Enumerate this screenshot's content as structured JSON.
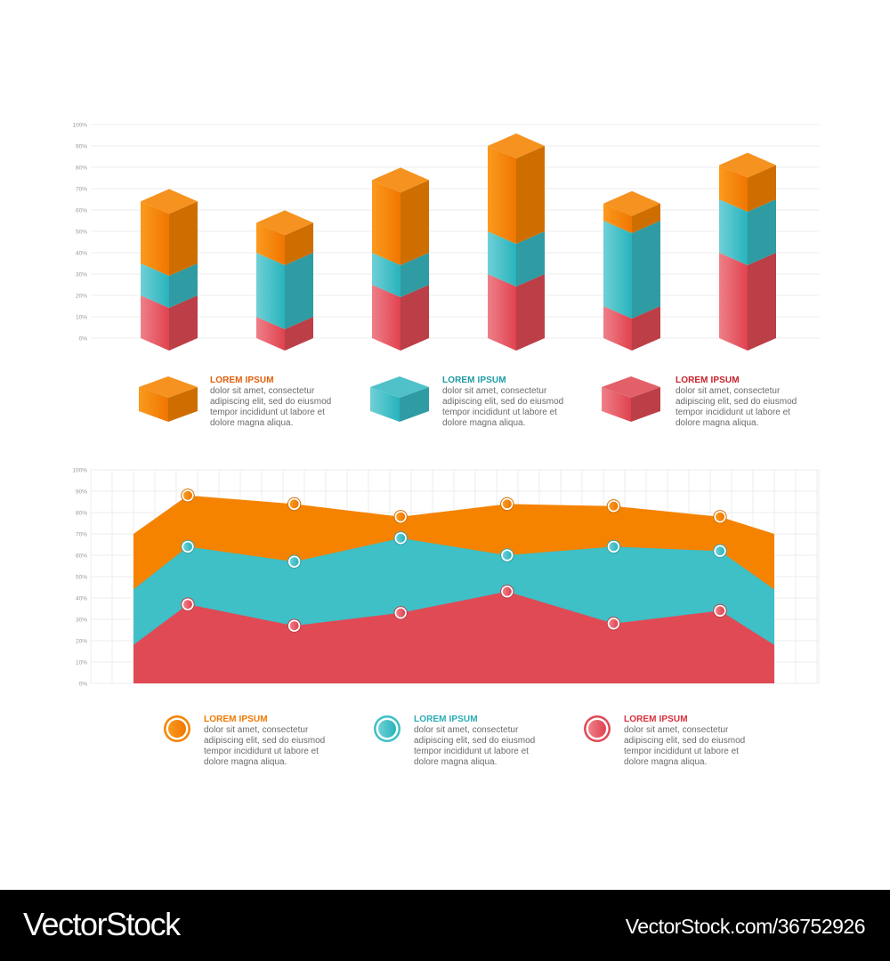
{
  "chart_data": [
    {
      "type": "bar",
      "stacked": true,
      "style": "3d-isometric",
      "categories": [
        "",
        "",
        "",
        "",
        "",
        ""
      ],
      "y_ticks": [
        "0%",
        "10%",
        "20%",
        "30%",
        "40%",
        "50%",
        "60%",
        "70%",
        "80%",
        "90%",
        "100%"
      ],
      "ylim": [
        0,
        100
      ],
      "grid": true,
      "series": [
        {
          "key": "red",
          "color": "#e04a55",
          "values": [
            20,
            10,
            25,
            30,
            15,
            40
          ]
        },
        {
          "key": "teal",
          "color": "#38b8c2",
          "values": [
            15,
            30,
            15,
            20,
            40,
            25
          ]
        },
        {
          "key": "orange",
          "color": "#f58300",
          "values": [
            29,
            14,
            34,
            40,
            8,
            16
          ]
        }
      ]
    },
    {
      "type": "area",
      "stacked": true,
      "x": [
        1,
        2,
        3,
        4,
        5,
        6
      ],
      "y_ticks": [
        "0%",
        "10%",
        "20%",
        "30%",
        "40%",
        "50%",
        "60%",
        "70%",
        "80%",
        "90%",
        "100%"
      ],
      "ylim": [
        0,
        100
      ],
      "grid": true,
      "edges": {
        "red": 18,
        "teal": 44,
        "orange": 70
      },
      "series": [
        {
          "key": "red",
          "color": "#e04a55",
          "values": [
            37,
            27,
            33,
            43,
            28,
            34
          ]
        },
        {
          "key": "teal",
          "color": "#3fbfc6",
          "values": [
            64,
            57,
            68,
            60,
            64,
            62
          ]
        },
        {
          "key": "orange",
          "color": "#f58300",
          "values": [
            88,
            84,
            78,
            84,
            83,
            78
          ]
        }
      ]
    }
  ],
  "legend_bar": [
    {
      "title": "LOREM IPSUM",
      "color": "#e35d0a",
      "text": [
        "dolor sit amet, consectetur",
        "adipiscing elit, sed do eiusmod",
        "tempor incididunt ut labore et",
        "dolore magna aliqua."
      ]
    },
    {
      "title": "LOREM IPSUM",
      "color": "#1e9ba5",
      "text": [
        "dolor sit amet, consectetur",
        "adipiscing elit, sed do eiusmod",
        "tempor incididunt ut labore et",
        "dolore magna aliqua."
      ]
    },
    {
      "title": "LOREM IPSUM",
      "color": "#c8202a",
      "text": [
        "dolor sit amet, consectetur",
        "adipiscing elit, sed do eiusmod",
        "tempor incididunt ut labore et",
        "dolore magna aliqua."
      ]
    }
  ],
  "legend_area": [
    {
      "title": "LOREM IPSUM",
      "color": "#f07800",
      "text": [
        "dolor sit amet, consectetur",
        "adipiscing elit, sed do eiusmod",
        "tempor incididunt ut labore et",
        "dolore magna aliqua."
      ]
    },
    {
      "title": "LOREM IPSUM",
      "color": "#2aabb6",
      "text": [
        "dolor sit amet, consectetur",
        "adipiscing elit, sed do eiusmod",
        "tempor incididunt ut labore et",
        "dolore magna aliqua."
      ]
    },
    {
      "title": "LOREM IPSUM",
      "color": "#d6303c",
      "text": [
        "dolor sit amet, consectetur",
        "adipiscing elit, sed do eiusmod",
        "tempor incididunt ut labore et",
        "dolore magna aliqua."
      ]
    }
  ],
  "footer": {
    "brand": "VectorStock",
    "url": "VectorStock.com/36752926"
  }
}
